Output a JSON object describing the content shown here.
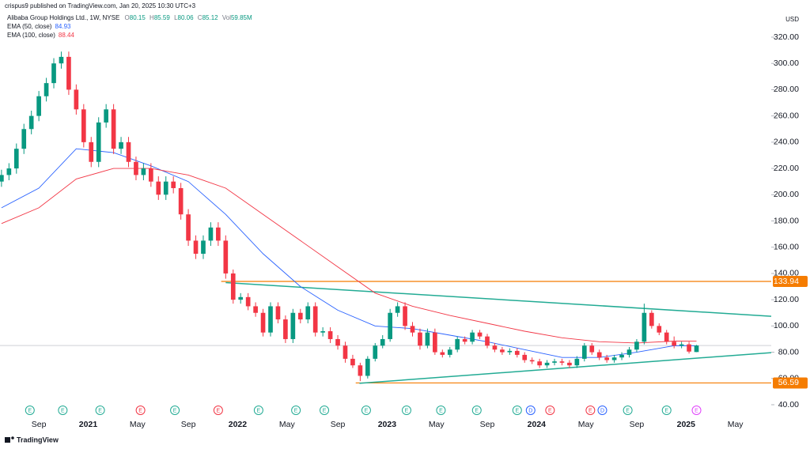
{
  "header": {
    "published": "crispus9 published on TradingView.com, Jan 20, 2025 10:30 UTC+3",
    "symbol": "Alibaba Group Holdings Ltd., 1W, NYSE",
    "ohlc": [
      {
        "label": "O",
        "value": 80.15
      },
      {
        "label": "H",
        "value": 85.59
      },
      {
        "label": "L",
        "value": 80.06
      },
      {
        "label": "C",
        "value": 85.12
      },
      {
        "label": "Vol",
        "value": "59.85M"
      }
    ],
    "currency": "USD",
    "brand": "TradingView"
  },
  "chart_data": {
    "type": "candlestick",
    "x": [
      2020.42,
      2020.47,
      2020.52,
      2020.57,
      2020.62,
      2020.67,
      2020.72,
      2020.77,
      2020.82,
      2020.87,
      2020.92,
      2020.97,
      2021.02,
      2021.07,
      2021.12,
      2021.17,
      2021.22,
      2021.27,
      2021.32,
      2021.37,
      2021.42,
      2021.47,
      2021.52,
      2021.57,
      2021.62,
      2021.67,
      2021.72,
      2021.77,
      2021.82,
      2021.87,
      2021.92,
      2021.97,
      2022.02,
      2022.07,
      2022.12,
      2022.17,
      2022.22,
      2022.27,
      2022.32,
      2022.37,
      2022.42,
      2022.47,
      2022.52,
      2022.57,
      2022.62,
      2022.67,
      2022.72,
      2022.77,
      2022.82,
      2022.87,
      2022.92,
      2022.97,
      2023.02,
      2023.07,
      2023.12,
      2023.17,
      2023.22,
      2023.27,
      2023.32,
      2023.37,
      2023.42,
      2023.47,
      2023.52,
      2023.57,
      2023.62,
      2023.67,
      2023.72,
      2023.77,
      2023.82,
      2023.87,
      2023.92,
      2023.97,
      2024.02,
      2024.07,
      2024.12,
      2024.17,
      2024.22,
      2024.27,
      2024.32,
      2024.37,
      2024.42,
      2024.47,
      2024.52,
      2024.57,
      2024.62,
      2024.67,
      2024.72,
      2024.77,
      2024.82,
      2024.87,
      2024.92,
      2024.97,
      2025.02,
      2025.07
    ],
    "open": [
      210,
      215,
      220,
      235,
      250,
      260,
      275,
      285,
      300,
      305,
      280,
      265,
      240,
      225,
      255,
      265,
      235,
      240,
      225,
      215,
      220,
      210,
      200,
      210,
      205,
      185,
      165,
      155,
      165,
      175,
      165,
      140,
      120,
      122,
      115,
      110,
      95,
      115,
      105,
      90,
      110,
      105,
      115,
      95,
      96,
      90,
      85,
      75,
      70,
      62,
      75,
      85,
      90,
      110,
      115,
      100,
      95,
      85,
      95,
      80,
      78,
      82,
      90,
      88,
      95,
      92,
      85,
      82,
      80,
      81,
      78,
      74,
      73,
      70,
      72,
      73,
      72,
      70,
      75,
      85,
      80,
      76,
      74,
      76,
      78,
      82,
      88,
      110,
      100,
      95,
      88,
      85,
      86,
      80.15
    ],
    "high": [
      219,
      224,
      239,
      254,
      264,
      279,
      289,
      304,
      309,
      309,
      284,
      269,
      244,
      259,
      269,
      269,
      244,
      244,
      229,
      224,
      224,
      214,
      214,
      214,
      209,
      189,
      169,
      169,
      179,
      179,
      169,
      143,
      125,
      125,
      118,
      113,
      118,
      118,
      108,
      113,
      113,
      118,
      118,
      99,
      99,
      93,
      88,
      78,
      72,
      77,
      87,
      93,
      113,
      118,
      118,
      103,
      98,
      98,
      98,
      82,
      84,
      92,
      92,
      97,
      97,
      94,
      87,
      84,
      83,
      83,
      80,
      76,
      75,
      74,
      75,
      75,
      74,
      77,
      87,
      87,
      82,
      78,
      78,
      80,
      84,
      90,
      117,
      112,
      102,
      97,
      92,
      88,
      88,
      85.59
    ],
    "low": [
      206,
      211,
      216,
      231,
      246,
      256,
      271,
      281,
      296,
      276,
      261,
      236,
      221,
      221,
      251,
      231,
      231,
      221,
      211,
      211,
      206,
      196,
      196,
      201,
      181,
      161,
      151,
      151,
      161,
      161,
      136,
      117,
      117,
      112,
      107,
      92,
      92,
      102,
      87,
      87,
      102,
      102,
      92,
      92,
      87,
      82,
      72,
      68,
      58,
      60,
      73,
      83,
      88,
      107,
      97,
      92,
      82,
      83,
      78,
      76,
      76,
      80,
      86,
      86,
      90,
      83,
      80,
      78,
      78,
      76,
      72,
      71,
      68,
      68,
      70,
      70,
      68,
      68,
      73,
      78,
      74,
      72,
      72,
      74,
      76,
      80,
      86,
      98,
      93,
      86,
      83,
      83,
      79,
      80.06
    ],
    "close": [
      215,
      220,
      235,
      250,
      260,
      275,
      285,
      300,
      305,
      280,
      265,
      240,
      225,
      255,
      265,
      235,
      240,
      225,
      215,
      220,
      210,
      200,
      210,
      205,
      185,
      165,
      155,
      165,
      175,
      165,
      140,
      120,
      122,
      115,
      110,
      95,
      115,
      105,
      90,
      110,
      105,
      115,
      95,
      96,
      90,
      85,
      75,
      70,
      62,
      75,
      85,
      90,
      110,
      115,
      100,
      95,
      85,
      95,
      80,
      78,
      82,
      90,
      88,
      95,
      92,
      85,
      82,
      80,
      81,
      78,
      74,
      73,
      70,
      72,
      73,
      72,
      70,
      75,
      85,
      80,
      76,
      74,
      76,
      78,
      82,
      88,
      110,
      100,
      95,
      88,
      85,
      86,
      80.5,
      85.12
    ],
    "up_color": "#089981",
    "down_color": "#f23645",
    "series": [
      {
        "name": "EMA (50, close)",
        "color": "#2962ff",
        "legend_value": 84.93,
        "x": [
          2020.42,
          2020.67,
          2020.92,
          2021.17,
          2021.42,
          2021.67,
          2021.92,
          2022.17,
          2022.42,
          2022.67,
          2022.92,
          2023.17,
          2023.42,
          2023.67,
          2023.92,
          2024.17,
          2024.42,
          2024.67,
          2024.92,
          2025.07
        ],
        "values": [
          190,
          205,
          235,
          232,
          222,
          210,
          185,
          155,
          130,
          112,
          100,
          98,
          93,
          88,
          82,
          76,
          76,
          80,
          85,
          84.93
        ]
      },
      {
        "name": "EMA (100, close)",
        "color": "#f23645",
        "legend_value": 88.44,
        "x": [
          2020.42,
          2020.67,
          2020.92,
          2021.17,
          2021.42,
          2021.67,
          2021.92,
          2022.17,
          2022.42,
          2022.67,
          2022.92,
          2023.17,
          2023.42,
          2023.67,
          2023.92,
          2024.17,
          2024.42,
          2024.67,
          2024.92,
          2025.07
        ],
        "values": [
          178,
          190,
          212,
          220,
          220,
          215,
          205,
          185,
          165,
          145,
          125,
          115,
          108,
          102,
          96,
          91,
          88,
          87,
          88.5,
          88.44
        ]
      }
    ],
    "hlines": [
      {
        "value": 133.94,
        "label": "133.94",
        "x_start": 2021.89,
        "color": "#f57c00"
      },
      {
        "value": 56.59,
        "label": "56.59",
        "x_start": 2022.79,
        "color": "#f57c00"
      }
    ],
    "trendlines": [
      {
        "x": [
          2021.92,
          2025.57
        ],
        "y": [
          133,
          107.4
        ],
        "color": "#22ab94"
      },
      {
        "x": [
          2022.815,
          2025.57
        ],
        "y": [
          56.3,
          79.7
        ],
        "color": "#22ab94"
      }
    ],
    "events": [
      {
        "x": 2020.61,
        "label": "E",
        "color": "#22ab94"
      },
      {
        "x": 2020.83,
        "label": "E",
        "color": "#22ab94"
      },
      {
        "x": 2021.08,
        "label": "E",
        "color": "#22ab94"
      },
      {
        "x": 2021.35,
        "label": "E",
        "color": "#f23645"
      },
      {
        "x": 2021.58,
        "label": "E",
        "color": "#22ab94"
      },
      {
        "x": 2021.87,
        "label": "E",
        "color": "#f23645"
      },
      {
        "x": 2022.14,
        "label": "E",
        "color": "#22ab94"
      },
      {
        "x": 2022.39,
        "label": "E",
        "color": "#22ab94"
      },
      {
        "x": 2022.58,
        "label": "E",
        "color": "#22ab94"
      },
      {
        "x": 2022.86,
        "label": "E",
        "color": "#22ab94"
      },
      {
        "x": 2023.13,
        "label": "E",
        "color": "#22ab94"
      },
      {
        "x": 2023.36,
        "label": "E",
        "color": "#22ab94"
      },
      {
        "x": 2023.6,
        "label": "E",
        "color": "#22ab94"
      },
      {
        "x": 2023.87,
        "label": "E",
        "color": "#22ab94"
      },
      {
        "x": 2023.96,
        "label": "D",
        "color": "#2962ff"
      },
      {
        "x": 2024.09,
        "label": "E",
        "color": "#f23645"
      },
      {
        "x": 2024.36,
        "label": "E",
        "color": "#f23645"
      },
      {
        "x": 2024.44,
        "label": "D",
        "color": "#2962ff"
      },
      {
        "x": 2024.61,
        "label": "E",
        "color": "#22ab94"
      },
      {
        "x": 2024.87,
        "label": "E",
        "color": "#22ab94"
      },
      {
        "x": 2025.07,
        "label": "E",
        "color": "#e040fb"
      }
    ],
    "xlim": [
      2020.41,
      2025.57
    ],
    "xticks": [
      {
        "value": 2020.67,
        "label": "Sep"
      },
      {
        "value": 2021,
        "label": "2021"
      },
      {
        "value": 2021.33,
        "label": "May"
      },
      {
        "value": 2021.67,
        "label": "Sep"
      },
      {
        "value": 2022,
        "label": "2022"
      },
      {
        "value": 2022.33,
        "label": "May"
      },
      {
        "value": 2022.67,
        "label": "Sep"
      },
      {
        "value": 2023,
        "label": "2023"
      },
      {
        "value": 2023.33,
        "label": "May"
      },
      {
        "value": 2023.67,
        "label": "Sep"
      },
      {
        "value": 2024,
        "label": "2024"
      },
      {
        "value": 2024.33,
        "label": "May"
      },
      {
        "value": 2024.67,
        "label": "Sep"
      },
      {
        "value": 2025,
        "label": "2025"
      },
      {
        "value": 2025.33,
        "label": "May"
      }
    ],
    "ylim": [
      40,
      320
    ],
    "yticks": [
      {
        "value": 40,
        "label": "40.00"
      },
      {
        "value": 60,
        "label": "60.00"
      },
      {
        "value": 80,
        "label": "80.00"
      },
      {
        "value": 100,
        "label": "100.00"
      },
      {
        "value": 120,
        "label": "120.00"
      },
      {
        "value": 140,
        "label": "140.00"
      },
      {
        "value": 160,
        "label": "160.00"
      },
      {
        "value": 180,
        "label": "180.00"
      },
      {
        "value": 200,
        "label": "200.00"
      },
      {
        "value": 220,
        "label": "220.00"
      },
      {
        "value": 240,
        "label": "240.00"
      },
      {
        "value": 260,
        "label": "260.00"
      },
      {
        "value": 280,
        "label": "280.00"
      },
      {
        "value": 300,
        "label": "300.00"
      },
      {
        "value": 320,
        "label": "320.00"
      }
    ],
    "last_price_line": 85.12
  }
}
